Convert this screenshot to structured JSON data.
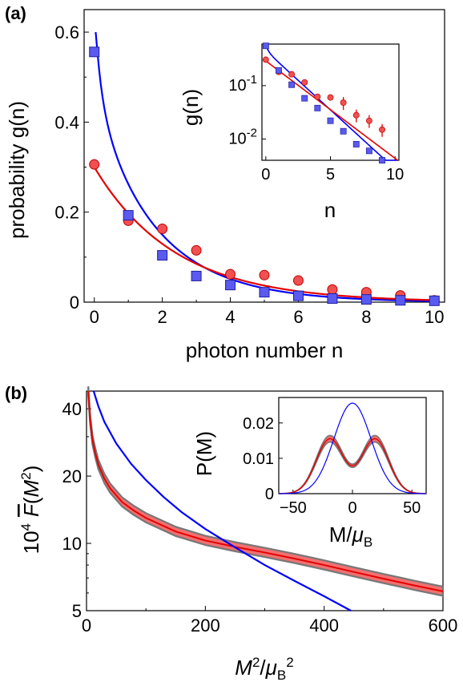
{
  "panel_labels": {
    "a": "(a)",
    "b": "(b)"
  },
  "colors": {
    "blue": "#0000FF",
    "blue_marker": "#5A5AF0",
    "red": "#E60000",
    "red_marker": "#F05050",
    "band_gray": "#777777",
    "band_red": "#F07070"
  },
  "chart_data": [
    {
      "panel": "a",
      "type": "scatter",
      "xlabel": "photon number n",
      "ylabel": "probability g(n)",
      "xlim": [
        -0.3,
        10.3
      ],
      "ylim": [
        0,
        0.65
      ],
      "xticks": [
        "0",
        "2",
        "4",
        "6",
        "8",
        "10"
      ],
      "yticks": [
        "0",
        "0.2",
        "0.4",
        "0.6"
      ],
      "grid": false,
      "series": [
        {
          "marker": "square",
          "color": "#5A5AF0",
          "x": [
            0,
            1,
            2,
            3,
            4,
            5,
            6,
            7,
            8,
            9,
            10
          ],
          "y": [
            0.556,
            0.193,
            0.104,
            0.058,
            0.038,
            0.022,
            0.014,
            0.008,
            0.006,
            0.004,
            0.003
          ]
        },
        {
          "marker": "circle",
          "color": "#F05050",
          "x": [
            0,
            1,
            2,
            3,
            4,
            5,
            6,
            7,
            8,
            9,
            10
          ],
          "y": [
            0.306,
            0.181,
            0.163,
            0.115,
            0.062,
            0.06,
            0.048,
            0.028,
            0.022,
            0.015,
            0.004
          ]
        }
      ],
      "fits": [
        {
          "color": "#0000FF",
          "type": "exponential",
          "a": 0.32,
          "b": 0.52,
          "x0": 0.12
        },
        {
          "color": "#E60000",
          "type": "exponential",
          "a": 0.27,
          "b": 0.29,
          "x0": 0.0
        }
      ],
      "inset": {
        "type": "scatter",
        "xlabel": "n",
        "ylabel": "g(n)",
        "xlim": [
          -0.3,
          10.3
        ],
        "yscale": "log",
        "ylim": [
          0.004,
          0.6
        ],
        "xticks": [
          "0",
          "5",
          "10"
        ],
        "yticks": [
          {
            "base": "10",
            "exp": "-1"
          },
          {
            "base": "10",
            "exp": "-2"
          }
        ]
      }
    },
    {
      "panel": "b",
      "type": "line",
      "xlabel": {
        "base": "M",
        "sup": "2",
        "sep": "/",
        "sym": "μ",
        "sub": "B",
        "sup2": "2"
      },
      "ylabel": {
        "pre": "10",
        "sup": "4",
        "fn": "F",
        "arg_open": "(",
        "arg": "M",
        "arg_sup": "2",
        "arg_close": ")"
      },
      "xlim": [
        0,
        600
      ],
      "yscale": "log",
      "ylim": [
        5,
        48
      ],
      "xticks": [
        "0",
        "200",
        "400",
        "600"
      ],
      "yticks": [
        "5",
        "10",
        "20",
        "40"
      ],
      "grid": false,
      "series": [
        {
          "color": "#0000FF",
          "x": [
            12,
            20,
            30,
            50,
            75,
            100,
            130,
            160,
            200,
            250,
            300,
            350,
            400,
            445
          ],
          "y": [
            48,
            41,
            35,
            28,
            22.7,
            19.2,
            16.1,
            13.8,
            11.6,
            9.6,
            8.0,
            6.8,
            5.8,
            5.0
          ]
        },
        {
          "color": "#E60000",
          "band": 0.05,
          "x": [
            3,
            6,
            10,
            15,
            20,
            30,
            40,
            60,
            80,
            100,
            150,
            200,
            250,
            300,
            350,
            400,
            450,
            500,
            550,
            600
          ],
          "y": [
            48,
            36,
            29,
            25.2,
            22.5,
            19.5,
            17.6,
            15.3,
            14.0,
            13.0,
            11.3,
            10.3,
            9.65,
            9.1,
            8.55,
            8.0,
            7.45,
            6.95,
            6.5,
            6.1
          ]
        }
      ],
      "inset": {
        "type": "line",
        "xlabel": {
          "base": "M",
          "sep": "/",
          "sym": "μ",
          "sub": "B"
        },
        "ylabel": "P(M)",
        "xlim": [
          -62,
          62
        ],
        "ylim": [
          0,
          0.0272
        ],
        "xticks": [
          "−50",
          "0",
          "50"
        ],
        "yticks": [
          "0",
          "0.01",
          "0.02"
        ],
        "series": [
          {
            "color": "#0000FF",
            "type": "gaussian",
            "amplitude": 0.0256,
            "sigma": 15.6
          },
          {
            "color": "#E60000",
            "type": "bimodal",
            "peaks": [
              -19,
              19
            ],
            "peak_height": 0.0157,
            "dip": 0.0049,
            "sigma": 11.5
          }
        ]
      }
    }
  ]
}
